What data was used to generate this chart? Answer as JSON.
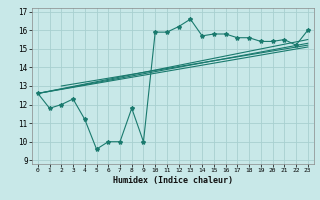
{
  "title": "",
  "xlabel": "Humidex (Indice chaleur)",
  "ylabel": "",
  "bg_color": "#c8e8e8",
  "line_color": "#1a7a6e",
  "grid_color": "#a8d0d0",
  "xlim": [
    -0.5,
    23.5
  ],
  "ylim": [
    8.8,
    17.2
  ],
  "yticks": [
    9,
    10,
    11,
    12,
    13,
    14,
    15,
    16,
    17
  ],
  "xtick_labels": [
    "0",
    "1",
    "2",
    "3",
    "4",
    "5",
    "6",
    "7",
    "8",
    "9",
    "10",
    "11",
    "12",
    "13",
    "14",
    "15",
    "16",
    "17",
    "18",
    "19",
    "20",
    "21",
    "22",
    "23"
  ],
  "main_x": [
    0,
    1,
    2,
    3,
    4,
    5,
    6,
    7,
    8,
    9,
    10,
    11,
    12,
    13,
    14,
    15,
    16,
    17,
    18,
    19,
    20,
    21,
    22,
    23
  ],
  "main_y": [
    12.6,
    11.8,
    12.0,
    12.3,
    11.2,
    9.6,
    10.0,
    10.0,
    11.8,
    10.0,
    15.9,
    15.9,
    16.2,
    16.6,
    15.7,
    15.8,
    15.8,
    15.6,
    15.6,
    15.4,
    15.4,
    15.5,
    15.2,
    16.0
  ],
  "trend_lines": [
    {
      "x": [
        0,
        23
      ],
      "y": [
        12.6,
        15.1
      ]
    },
    {
      "x": [
        0,
        23
      ],
      "y": [
        12.6,
        15.3
      ]
    },
    {
      "x": [
        0,
        23
      ],
      "y": [
        12.6,
        15.5
      ]
    },
    {
      "x": [
        2,
        23
      ],
      "y": [
        13.0,
        15.2
      ]
    }
  ]
}
